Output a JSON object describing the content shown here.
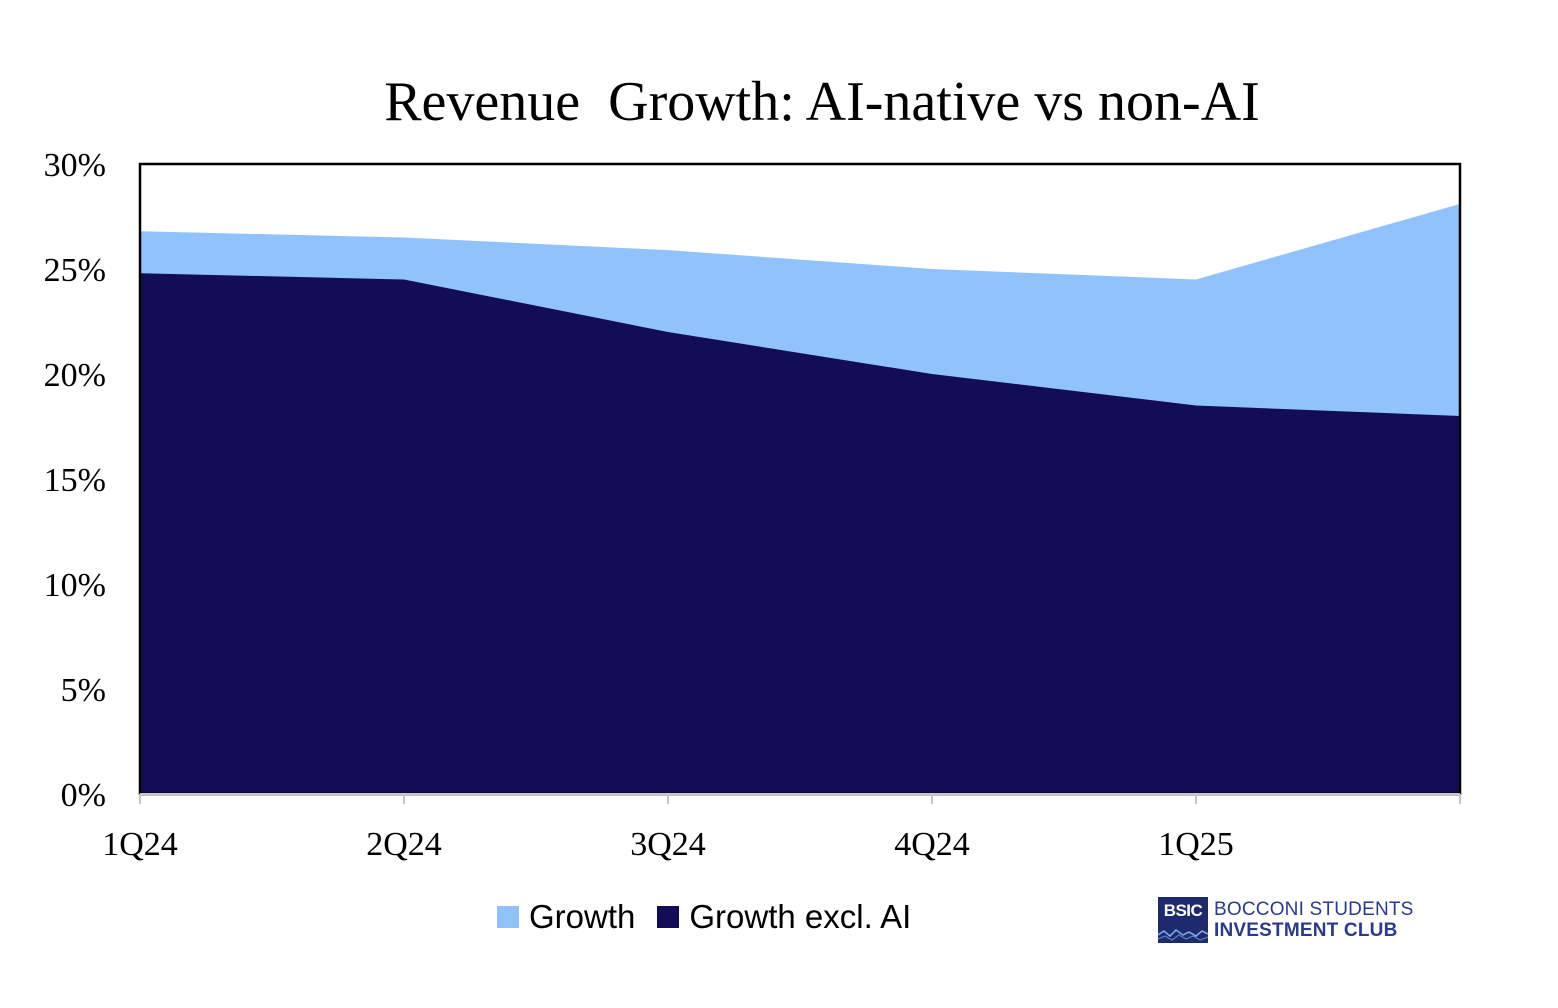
{
  "chart_data": {
    "type": "area",
    "stacked": false,
    "title": "Revenue  Growth: AI-native vs non-AI",
    "categories": [
      "1Q24",
      "2Q24",
      "3Q24",
      "4Q24",
      "1Q25",
      ""
    ],
    "series": [
      {
        "name": "Growth",
        "color": "#90c3fc",
        "values": [
          26.8,
          26.5,
          25.9,
          25.0,
          24.5,
          28.1
        ]
      },
      {
        "name": "Growth excl. AI",
        "color": "#120d55",
        "values": [
          24.8,
          24.5,
          22.0,
          20.0,
          18.5,
          18.0
        ]
      }
    ],
    "xlabel": "",
    "ylabel": "",
    "ylim": [
      0,
      30
    ],
    "yticks": [
      "0%",
      "5%",
      "10%",
      "15%",
      "20%",
      "25%",
      "30%"
    ],
    "ytick_values": [
      0,
      5,
      10,
      15,
      20,
      25,
      30
    ],
    "grid": false,
    "legend_position": "bottom"
  },
  "logo": {
    "box_text": "BSIC",
    "line1": "BOCCONI STUDENTS",
    "line2": "INVESTMENT CLUB",
    "color": "#2b3a8a"
  }
}
